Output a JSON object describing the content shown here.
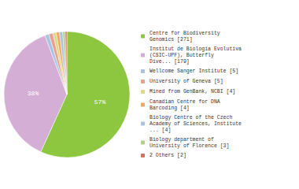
{
  "chart_data": {
    "type": "pie",
    "categories": [
      "Centre for Biodiversity\nGenomics [271]",
      "Institut de Biologia Evolutiva\n(CSIC-UPF), Butterfly\nDive... [179]",
      "Wellcome Sanger Institute [5]",
      "University of Geneva [5]",
      "Mined from GenBank, NCBI [4]",
      "Canadian Centre for DNA\nBarcoding [4]",
      "Biology Centre of the Czech\nAcademy of Sciences, Institute\n... [4]",
      "Biology department of\nUniversity of Florence [3]",
      "2 Others [2]"
    ],
    "values": [
      56.81,
      37.53,
      1.05,
      1.05,
      0.84,
      0.84,
      0.84,
      0.63,
      0.42
    ],
    "value_labels": [
      "57%",
      "38%",
      null,
      null,
      null,
      null,
      null,
      null,
      null
    ],
    "colors": [
      "#8dc63f",
      "#d4aed4",
      "#a8c4e0",
      "#e8a090",
      "#ddd888",
      "#f0a860",
      "#a8c4e0",
      "#b8cc88",
      "#d87060"
    ],
    "legend": "right"
  }
}
